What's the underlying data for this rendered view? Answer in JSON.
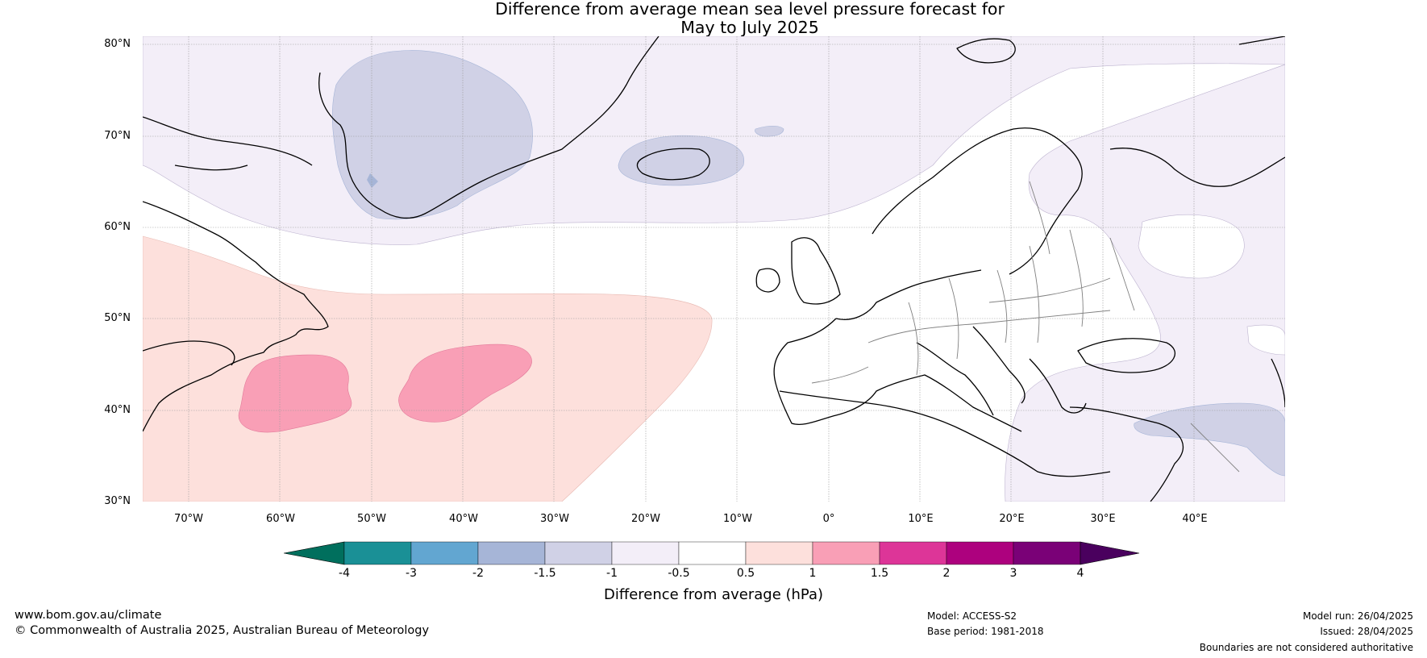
{
  "title": {
    "line1": "Difference from average mean sea level pressure forecast for",
    "line2": "May to July 2025"
  },
  "lat_labels": [
    "80°N",
    "70°N",
    "60°N",
    "50°N",
    "40°N",
    "30°N"
  ],
  "lon_labels": [
    "70°W",
    "60°W",
    "50°W",
    "40°W",
    "30°W",
    "20°W",
    "10°W",
    "0°",
    "10°E",
    "20°E",
    "30°E",
    "40°E"
  ],
  "map_extent": {
    "lon_min": -75,
    "lon_max": 50,
    "lat_min": 30,
    "lat_max": 81
  },
  "colorbar": {
    "title": "Difference from average (hPa)",
    "ticks": [
      "-4",
      "-3",
      "-2",
      "-1.5",
      "-1",
      "-0.5",
      "0.5",
      "1",
      "1.5",
      "2",
      "3",
      "4"
    ],
    "colors": [
      "#006f5d",
      "#1a9096",
      "#62a6d1",
      "#a6b5d7",
      "#d0d1e6",
      "#f3eef8",
      "#ffffff",
      "#fde0dc",
      "#f99fb6",
      "#dd3598",
      "#ad017e",
      "#7a0177",
      "#4a005e"
    ]
  },
  "footer": {
    "url": "www.bom.gov.au/climate",
    "copyright": "© Commonwealth of Australia 2025, Australian Bureau of Meteorology",
    "model": "Model: ACCESS-S2",
    "base_period": "Base period: 1981-2018",
    "model_run": "Model run: 26/04/2025",
    "issued": "Issued: 28/04/2025",
    "disclaimer": "Boundaries are not considered authoritative"
  }
}
